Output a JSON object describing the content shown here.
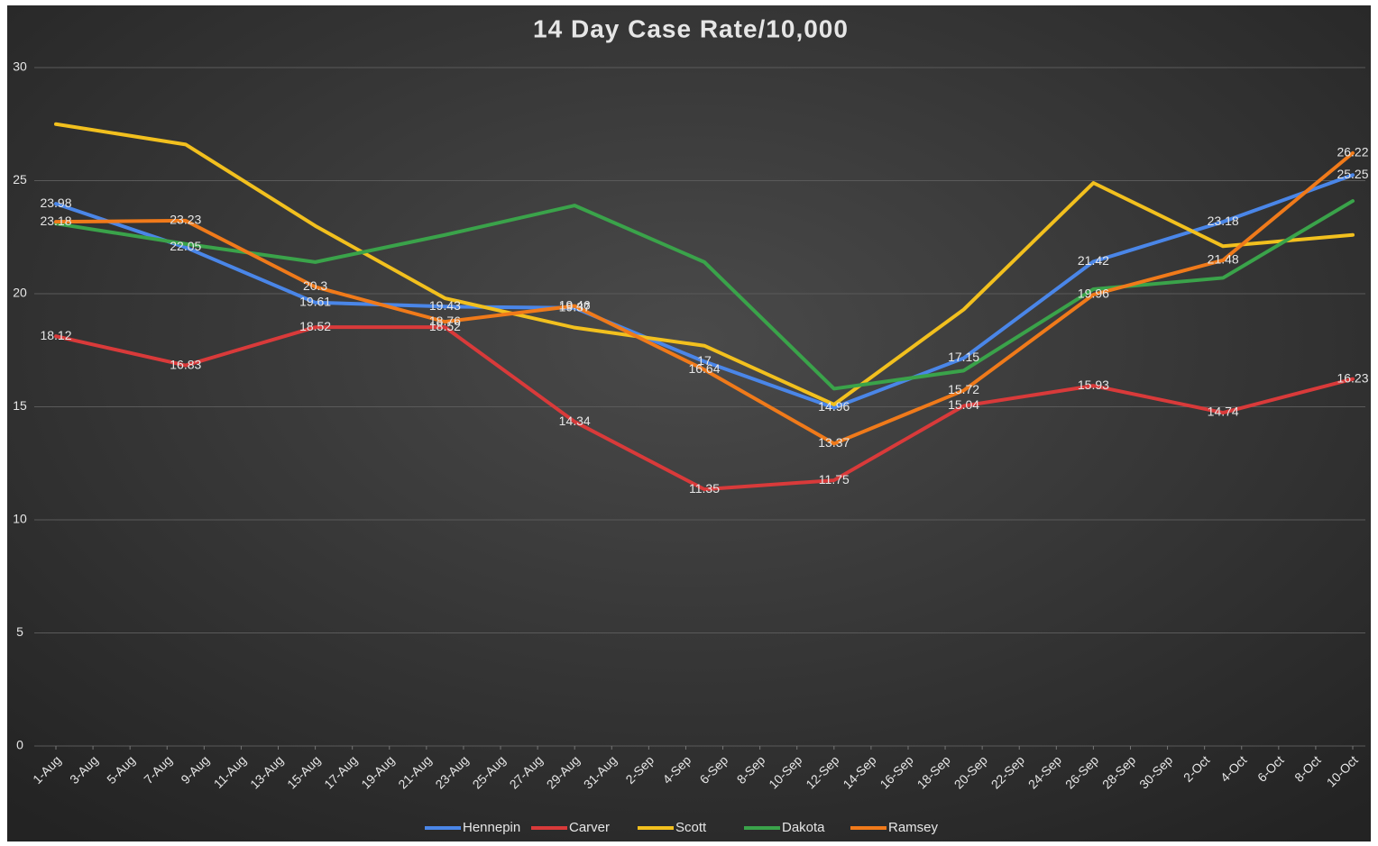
{
  "chart_data": {
    "type": "line",
    "title": "14 Day Case Rate/10,000",
    "x": [
      0,
      7,
      14,
      21,
      28,
      35,
      42,
      49,
      56,
      63,
      70
    ],
    "xlim": [
      0,
      70
    ],
    "xticks": [
      {
        "value": 0,
        "label": "1-Aug"
      },
      {
        "value": 2,
        "label": "3-Aug"
      },
      {
        "value": 4,
        "label": "5-Aug"
      },
      {
        "value": 6,
        "label": "7-Aug"
      },
      {
        "value": 8,
        "label": "9-Aug"
      },
      {
        "value": 10,
        "label": "11-Aug"
      },
      {
        "value": 12,
        "label": "13-Aug"
      },
      {
        "value": 14,
        "label": "15-Aug"
      },
      {
        "value": 16,
        "label": "17-Aug"
      },
      {
        "value": 18,
        "label": "19-Aug"
      },
      {
        "value": 20,
        "label": "21-Aug"
      },
      {
        "value": 22,
        "label": "23-Aug"
      },
      {
        "value": 24,
        "label": "25-Aug"
      },
      {
        "value": 26,
        "label": "27-Aug"
      },
      {
        "value": 28,
        "label": "29-Aug"
      },
      {
        "value": 30,
        "label": "31-Aug"
      },
      {
        "value": 32,
        "label": "2-Sep"
      },
      {
        "value": 34,
        "label": "4-Sep"
      },
      {
        "value": 36,
        "label": "6-Sep"
      },
      {
        "value": 38,
        "label": "8-Sep"
      },
      {
        "value": 40,
        "label": "10-Sep"
      },
      {
        "value": 42,
        "label": "12-Sep"
      },
      {
        "value": 44,
        "label": "14-Sep"
      },
      {
        "value": 46,
        "label": "16-Sep"
      },
      {
        "value": 48,
        "label": "18-Sep"
      },
      {
        "value": 50,
        "label": "20-Sep"
      },
      {
        "value": 52,
        "label": "22-Sep"
      },
      {
        "value": 54,
        "label": "24-Sep"
      },
      {
        "value": 56,
        "label": "26-Sep"
      },
      {
        "value": 58,
        "label": "28-Sep"
      },
      {
        "value": 60,
        "label": "30-Sep"
      },
      {
        "value": 62,
        "label": "2-Oct"
      },
      {
        "value": 64,
        "label": "4-Oct"
      },
      {
        "value": 66,
        "label": "6-Oct"
      },
      {
        "value": 68,
        "label": "8-Oct"
      },
      {
        "value": 70,
        "label": "10-Oct"
      }
    ],
    "ylim": [
      0,
      30
    ],
    "yticks": [
      0,
      5,
      10,
      15,
      20,
      25,
      30
    ],
    "grid": true,
    "legend": "bottom",
    "series": [
      {
        "name": "Hennepin",
        "color": "#4a86e8",
        "data_labels": true,
        "values": [
          23.98,
          22.05,
          19.61,
          19.43,
          19.37,
          17,
          14.96,
          17.15,
          21.42,
          23.18,
          25.25
        ]
      },
      {
        "name": "Carver",
        "color": "#d93a3a",
        "data_labels": true,
        "values": [
          18.12,
          16.83,
          18.52,
          18.52,
          14.34,
          11.35,
          11.75,
          15.04,
          15.93,
          14.74,
          16.23
        ]
      },
      {
        "name": "Scott",
        "color": "#f2c01e",
        "data_labels": false,
        "values": [
          27.5,
          26.6,
          23.0,
          19.8,
          18.5,
          17.7,
          15.1,
          19.3,
          24.9,
          22.1,
          22.6
        ]
      },
      {
        "name": "Dakota",
        "color": "#3aa34a",
        "data_labels": false,
        "values": [
          23.1,
          22.2,
          21.4,
          22.6,
          23.9,
          21.4,
          15.8,
          16.6,
          20.2,
          20.7,
          24.1
        ]
      },
      {
        "name": "Ramsey",
        "color": "#f07a1a",
        "data_labels": true,
        "values": [
          23.18,
          23.23,
          20.3,
          18.76,
          19.46,
          16.64,
          13.37,
          15.72,
          19.96,
          21.48,
          26.22
        ]
      }
    ]
  }
}
